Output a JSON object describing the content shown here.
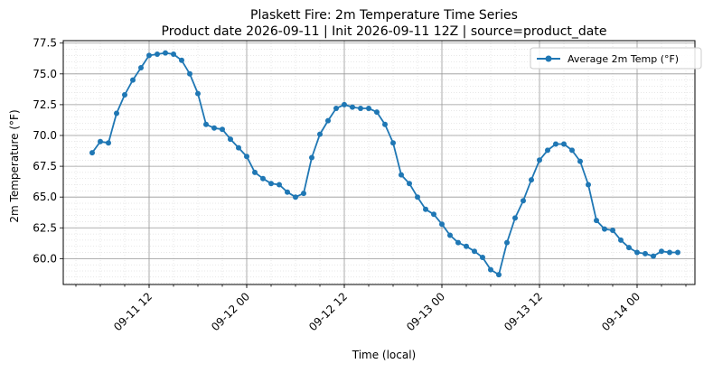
{
  "chart_data": {
    "type": "line",
    "title": "Plaskett Fire: 2m Temperature Time Series",
    "subtitle": "Product date 2026-09-11 | Init 2026-09-11 12Z | source=product_date",
    "xlabel": "Time (local)",
    "ylabel": "2m Temperature (°F)",
    "x_ticks": [
      "09-11 12",
      "09-12 00",
      "09-12 12",
      "09-13 00",
      "09-13 12",
      "09-14 00"
    ],
    "y_ticks": [
      "60.0",
      "62.5",
      "65.0",
      "67.5",
      "70.0",
      "72.5",
      "75.0",
      "77.5"
    ],
    "ylim": [
      57.9,
      77.7
    ],
    "grid": true,
    "legend_position": "top-right",
    "series": [
      {
        "name": "Average 2m Temp (°F)",
        "color": "#1f77b4",
        "x": [
          "2026-09-11 05:00",
          "2026-09-11 06:00",
          "2026-09-11 07:00",
          "2026-09-11 08:00",
          "2026-09-11 09:00",
          "2026-09-11 10:00",
          "2026-09-11 11:00",
          "2026-09-11 12:00",
          "2026-09-11 13:00",
          "2026-09-11 14:00",
          "2026-09-11 15:00",
          "2026-09-11 16:00",
          "2026-09-11 17:00",
          "2026-09-11 18:00",
          "2026-09-11 19:00",
          "2026-09-11 20:00",
          "2026-09-11 21:00",
          "2026-09-11 22:00",
          "2026-09-11 23:00",
          "2026-09-12 00:00",
          "2026-09-12 01:00",
          "2026-09-12 02:00",
          "2026-09-12 03:00",
          "2026-09-12 04:00",
          "2026-09-12 05:00",
          "2026-09-12 06:00",
          "2026-09-12 07:00",
          "2026-09-12 08:00",
          "2026-09-12 09:00",
          "2026-09-12 10:00",
          "2026-09-12 11:00",
          "2026-09-12 12:00",
          "2026-09-12 13:00",
          "2026-09-12 14:00",
          "2026-09-12 15:00",
          "2026-09-12 16:00",
          "2026-09-12 17:00",
          "2026-09-12 18:00",
          "2026-09-12 19:00",
          "2026-09-12 20:00",
          "2026-09-12 21:00",
          "2026-09-12 22:00",
          "2026-09-12 23:00",
          "2026-09-13 00:00",
          "2026-09-13 01:00",
          "2026-09-13 02:00",
          "2026-09-13 03:00",
          "2026-09-13 04:00",
          "2026-09-13 05:00",
          "2026-09-13 06:00",
          "2026-09-13 07:00",
          "2026-09-13 08:00",
          "2026-09-13 09:00",
          "2026-09-13 10:00",
          "2026-09-13 11:00",
          "2026-09-13 12:00",
          "2026-09-13 13:00",
          "2026-09-13 14:00",
          "2026-09-13 15:00",
          "2026-09-13 16:00",
          "2026-09-13 17:00",
          "2026-09-13 18:00",
          "2026-09-13 19:00",
          "2026-09-13 20:00",
          "2026-09-13 21:00",
          "2026-09-13 22:00",
          "2026-09-13 23:00",
          "2026-09-14 00:00",
          "2026-09-14 01:00",
          "2026-09-14 02:00",
          "2026-09-14 03:00",
          "2026-09-14 04:00",
          "2026-09-14 05:00"
        ],
        "y": [
          68.6,
          69.5,
          69.4,
          71.8,
          73.3,
          74.5,
          75.5,
          76.5,
          76.6,
          76.7,
          76.6,
          76.1,
          75.0,
          73.4,
          70.9,
          70.6,
          70.5,
          69.7,
          69.0,
          68.3,
          67.0,
          66.5,
          66.1,
          66.0,
          65.4,
          65.0,
          65.3,
          68.2,
          70.1,
          71.2,
          72.2,
          72.5,
          72.3,
          72.2,
          72.2,
          71.9,
          70.9,
          69.4,
          66.8,
          66.1,
          65.0,
          64.0,
          63.6,
          62.8,
          61.9,
          61.3,
          61.0,
          60.6,
          60.1,
          59.1,
          58.7,
          61.3,
          63.3,
          64.7,
          66.4,
          68.0,
          68.8,
          69.3,
          69.3,
          68.8,
          67.9,
          66.0,
          63.1,
          62.4,
          62.3,
          61.5,
          60.9,
          60.5,
          60.4,
          60.2,
          60.6,
          60.5,
          60.5
        ]
      }
    ]
  }
}
